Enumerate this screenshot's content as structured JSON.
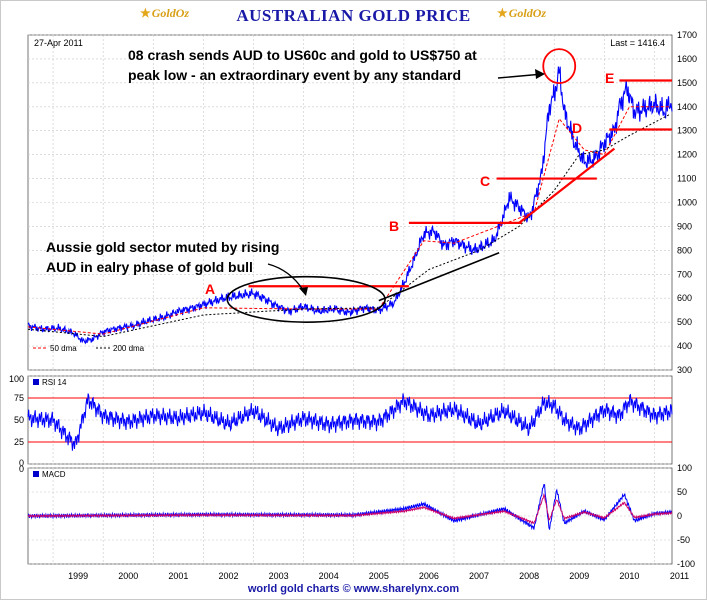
{
  "header": {
    "title": "AUSTRALIAN GOLD PRICE",
    "logo_left": "GoldOz",
    "logo_right": "GoldOz"
  },
  "price_panel": {
    "date_label": "27-Apr 2011",
    "last_label": "Last = 1416.4",
    "legend_50": "50 dma",
    "legend_200": "200 dma"
  },
  "annotations": {
    "crash_line1": "08 crash sends AUD to US60c and gold to US$750 at",
    "crash_line2": "peak low - an extraordinary event by any standard",
    "aussie_line1": "Aussie gold sector muted by rising",
    "aussie_line2": "AUD in ealry phase of gold bull",
    "labels": [
      "A",
      "B",
      "C",
      "D",
      "E"
    ]
  },
  "rsi_panel": {
    "label": "RSI 14"
  },
  "macd_panel": {
    "label": "MACD"
  },
  "footer": "world gold charts © www.sharelynx.com",
  "colors": {
    "price_line": "#0000ff",
    "annotation_red": "#ff0000",
    "title_blue": "#1a1aa8",
    "ma50": "#ff0000",
    "ma200": "#000000",
    "macd_signal": "#cc0066"
  },
  "chart_data": [
    {
      "type": "line",
      "title": "AUSTRALIAN GOLD PRICE",
      "subtitle": "Last = 1416.4",
      "ylim": [
        300,
        1700
      ],
      "yticks": [
        300,
        400,
        500,
        600,
        700,
        800,
        900,
        1000,
        1100,
        1200,
        1300,
        1400,
        1500,
        1600,
        1700
      ],
      "xlim": [
        1998.5,
        2011.35
      ],
      "xticks": [
        "1999",
        "2000",
        "2001",
        "2002",
        "2003",
        "2004",
        "2005",
        "2006",
        "2007",
        "2008",
        "2009",
        "2010",
        "2011"
      ],
      "grid": true,
      "series": [
        {
          "name": "price",
          "x": [
            1998.5,
            1998.8,
            1999.1,
            1999.4,
            1999.6,
            1999.8,
            2000.0,
            2000.3,
            2000.6,
            2000.9,
            2001.2,
            2001.5,
            2001.8,
            2002.1,
            2002.4,
            2002.7,
            2003.0,
            2003.2,
            2003.4,
            2003.7,
            2004.0,
            2004.3,
            2004.6,
            2004.9,
            2005.2,
            2005.5,
            2005.8,
            2006.0,
            2006.2,
            2006.4,
            2006.6,
            2006.8,
            2007.0,
            2007.2,
            2007.4,
            2007.6,
            2007.8,
            2008.0,
            2008.1,
            2008.3,
            2008.5,
            2008.6,
            2008.75,
            2008.9,
            2009.0,
            2009.1,
            2009.2,
            2009.4,
            2009.6,
            2009.8,
            2010.0,
            2010.2,
            2010.3,
            2010.45,
            2010.6,
            2010.8,
            2011.0,
            2011.2,
            2011.32
          ],
          "values": [
            485,
            470,
            475,
            455,
            420,
            430,
            460,
            475,
            485,
            505,
            520,
            545,
            560,
            580,
            600,
            610,
            620,
            600,
            575,
            545,
            565,
            545,
            555,
            540,
            560,
            550,
            580,
            660,
            760,
            870,
            880,
            820,
            840,
            820,
            800,
            820,
            840,
            950,
            1020,
            980,
            930,
            1000,
            1120,
            1400,
            1450,
            1550,
            1380,
            1250,
            1170,
            1180,
            1250,
            1300,
            1400,
            1480,
            1380,
            1390,
            1410,
            1380,
            1416
          ]
        },
        {
          "name": "50 dma",
          "x": [
            1998.5,
            2000.0,
            2002.0,
            2004.0,
            2005.5,
            2006.4,
            2007.0,
            2008.0,
            2008.6,
            2009.1,
            2009.6,
            2010.0,
            2010.5,
            2011.32
          ],
          "values": [
            480,
            450,
            560,
            555,
            555,
            840,
            830,
            910,
            960,
            1350,
            1220,
            1200,
            1400,
            1400
          ]
        },
        {
          "name": "200 dma",
          "x": [
            1998.5,
            2000.0,
            2002.0,
            2004.0,
            2005.5,
            2006.5,
            2007.5,
            2008.3,
            2009.0,
            2009.5,
            2010.0,
            2010.5,
            2011.32
          ],
          "values": [
            470,
            440,
            530,
            555,
            560,
            720,
            800,
            900,
            1050,
            1200,
            1220,
            1280,
            1370
          ]
        }
      ],
      "annotation_levels": {
        "A": 650,
        "B": 915,
        "C": 1100,
        "D": 1305,
        "E": 1510
      }
    },
    {
      "type": "line",
      "title": "RSI 14",
      "ylim": [
        0,
        100
      ],
      "yticks": [
        0,
        25,
        50,
        75,
        100
      ],
      "reference_lines": [
        25,
        75
      ],
      "x": [
        1998.5,
        1999.0,
        1999.3,
        1999.45,
        1999.7,
        2000.0,
        2000.5,
        2001.0,
        2001.5,
        2002.0,
        2002.5,
        2003.0,
        2003.5,
        2004.0,
        2004.5,
        2005.0,
        2005.5,
        2005.8,
        2006.0,
        2006.5,
        2007.0,
        2007.5,
        2008.0,
        2008.5,
        2008.8,
        2009.0,
        2009.2,
        2009.5,
        2010.0,
        2010.3,
        2010.5,
        2011.0,
        2011.32
      ],
      "values": [
        52,
        50,
        30,
        22,
        74,
        55,
        48,
        55,
        52,
        58,
        45,
        60,
        40,
        52,
        45,
        50,
        48,
        62,
        72,
        55,
        62,
        45,
        60,
        40,
        70,
        66,
        50,
        40,
        62,
        55,
        72,
        55,
        60
      ]
    },
    {
      "type": "line",
      "title": "MACD",
      "ylim": [
        -100,
        100
      ],
      "yticks": [
        -100,
        -50,
        0,
        50,
        100
      ],
      "series": [
        {
          "name": "MACD",
          "x": [
            1998.5,
            2002.0,
            2005.0,
            2006.0,
            2006.4,
            2007.0,
            2008.0,
            2008.6,
            2008.8,
            2008.9,
            2009.05,
            2009.2,
            2009.6,
            2010.0,
            2010.4,
            2010.6,
            2011.0,
            2011.32
          ],
          "values": [
            0,
            3,
            2,
            15,
            25,
            -10,
            15,
            -25,
            70,
            -30,
            55,
            -15,
            10,
            -8,
            45,
            -10,
            5,
            8
          ]
        },
        {
          "name": "signal",
          "x": [
            1998.5,
            2002.0,
            2005.0,
            2006.0,
            2006.4,
            2007.0,
            2008.0,
            2008.6,
            2008.8,
            2008.9,
            2009.05,
            2009.2,
            2009.6,
            2010.0,
            2010.4,
            2010.6,
            2011.0,
            2011.32
          ],
          "values": [
            0,
            2,
            1,
            10,
            18,
            -5,
            10,
            -15,
            45,
            -10,
            35,
            -5,
            8,
            -4,
            28,
            -3,
            4,
            6
          ]
        }
      ]
    }
  ]
}
